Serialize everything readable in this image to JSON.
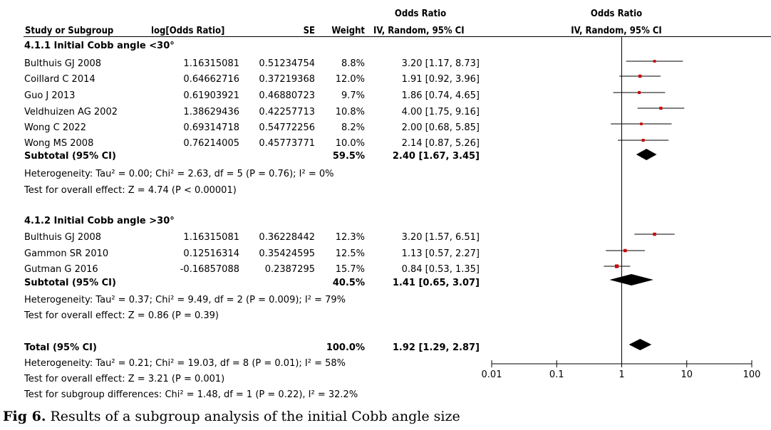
{
  "header": {
    "or_top_left": "Odds Ratio",
    "or_top_right": "Odds Ratio",
    "study": "Study or Subgroup",
    "logor": "log[Odds Ratio]",
    "se": "SE",
    "weight": "Weight",
    "method_left": "IV, Random, 95% CI",
    "method_right": "IV, Random, 95% CI"
  },
  "groups": [
    {
      "title": "4.1.1 Initial Cobb angle <30°",
      "studies": [
        {
          "study": "Bulthuis GJ 2008",
          "logor": "1.16315081",
          "se": "0.51234754",
          "weight": "8.8%",
          "ci": "3.20 [1.17, 8.73]"
        },
        {
          "study": "Coillard C 2014",
          "logor": "0.64662716",
          "se": "0.37219368",
          "weight": "12.0%",
          "ci": "1.91 [0.92, 3.96]"
        },
        {
          "study": "Guo J 2013",
          "logor": "0.61903921",
          "se": "0.46880723",
          "weight": "9.7%",
          "ci": "1.86 [0.74, 4.65]"
        },
        {
          "study": "Veldhuizen AG 2002",
          "logor": "1.38629436",
          "se": "0.42257713",
          "weight": "10.8%",
          "ci": "4.00 [1.75, 9.16]"
        },
        {
          "study": "Wong C 2022",
          "logor": "0.69314718",
          "se": "0.54772256",
          "weight": "8.2%",
          "ci": "2.00 [0.68, 5.85]"
        },
        {
          "study": "Wong MS 2008",
          "logor": "0.76214005",
          "se": "0.45773771",
          "weight": "10.0%",
          "ci": "2.14 [0.87, 5.26]"
        }
      ],
      "subtotal": {
        "label": "Subtotal (95% CI)",
        "weight": "59.5%",
        "ci": "2.40 [1.67, 3.45]"
      },
      "heterogeneity": "Heterogeneity: Tau² = 0.00; Chi² = 2.63, df = 5 (P = 0.76); I² = 0%",
      "overall": "Test for overall effect: Z = 4.74 (P < 0.00001)"
    },
    {
      "title": "4.1.2 Initial Cobb angle >30°",
      "studies": [
        {
          "study": "Bulthuis GJ 2008",
          "logor": "1.16315081",
          "se": "0.36228442",
          "weight": "12.3%",
          "ci": "3.20 [1.57, 6.51]"
        },
        {
          "study": "Gammon SR 2010",
          "logor": "0.12516314",
          "se": "0.35424595",
          "weight": "12.5%",
          "ci": "1.13 [0.57, 2.27]"
        },
        {
          "study": "Gutman G 2016",
          "logor": "-0.16857088",
          "se": "0.2387295",
          "weight": "15.7%",
          "ci": "0.84 [0.53, 1.35]"
        }
      ],
      "subtotal": {
        "label": "Subtotal (95% CI)",
        "weight": "40.5%",
        "ci": "1.41 [0.65, 3.07]"
      },
      "heterogeneity": "Heterogeneity: Tau² = 0.37; Chi² = 9.49, df = 2 (P = 0.009); I² = 79%",
      "overall": "Test for overall effect: Z = 0.86 (P = 0.39)"
    }
  ],
  "total": {
    "label": "Total (95% CI)",
    "weight": "100.0%",
    "ci": "1.92 [1.29, 2.87]",
    "heterogeneity": "Heterogeneity: Tau² = 0.21; Chi² = 19.03, df = 8 (P = 0.01); I² = 58%",
    "overall": "Test for overall effect: Z = 3.21 (P = 0.001)",
    "subgroup_diff": "Test for subgroup differences: Chi² = 1.48, df = 1 (P = 0.22), I² = 32.2%"
  },
  "caption": {
    "fig": "Fig 6.",
    "text": " Results of a subgroup analysis of the initial Cobb angle size"
  },
  "colors": {
    "square": "#cc0000",
    "diamond": "#000000",
    "line": "#000000"
  },
  "chart_data": {
    "type": "forest",
    "title": "Odds Ratio",
    "subtitle": "IV, Random, 95% CI",
    "x_scale": "log",
    "xlim": [
      0.01,
      100
    ],
    "x_ticks": [
      0.01,
      0.1,
      1,
      10,
      100
    ],
    "x_tick_labels": [
      "0.01",
      "0.1",
      "1",
      "10",
      "100"
    ],
    "reference_line": 1,
    "rows": [
      {
        "kind": "study",
        "or": 3.2,
        "lo": 1.17,
        "hi": 8.73,
        "weight": 8.8
      },
      {
        "kind": "study",
        "or": 1.91,
        "lo": 0.92,
        "hi": 3.96,
        "weight": 12.0
      },
      {
        "kind": "study",
        "or": 1.86,
        "lo": 0.74,
        "hi": 4.65,
        "weight": 9.7
      },
      {
        "kind": "study",
        "or": 4.0,
        "lo": 1.75,
        "hi": 9.16,
        "weight": 10.8
      },
      {
        "kind": "study",
        "or": 2.0,
        "lo": 0.68,
        "hi": 5.85,
        "weight": 8.2
      },
      {
        "kind": "study",
        "or": 2.14,
        "lo": 0.87,
        "hi": 5.26,
        "weight": 10.0
      },
      {
        "kind": "subtotal",
        "or": 2.4,
        "lo": 1.67,
        "hi": 3.45
      },
      {
        "kind": "study",
        "or": 3.2,
        "lo": 1.57,
        "hi": 6.51,
        "weight": 12.3
      },
      {
        "kind": "study",
        "or": 1.13,
        "lo": 0.57,
        "hi": 2.27,
        "weight": 12.5
      },
      {
        "kind": "study",
        "or": 0.84,
        "lo": 0.53,
        "hi": 1.35,
        "weight": 15.7
      },
      {
        "kind": "subtotal",
        "or": 1.41,
        "lo": 0.65,
        "hi": 3.07
      },
      {
        "kind": "total",
        "or": 1.92,
        "lo": 1.29,
        "hi": 2.87
      }
    ]
  }
}
